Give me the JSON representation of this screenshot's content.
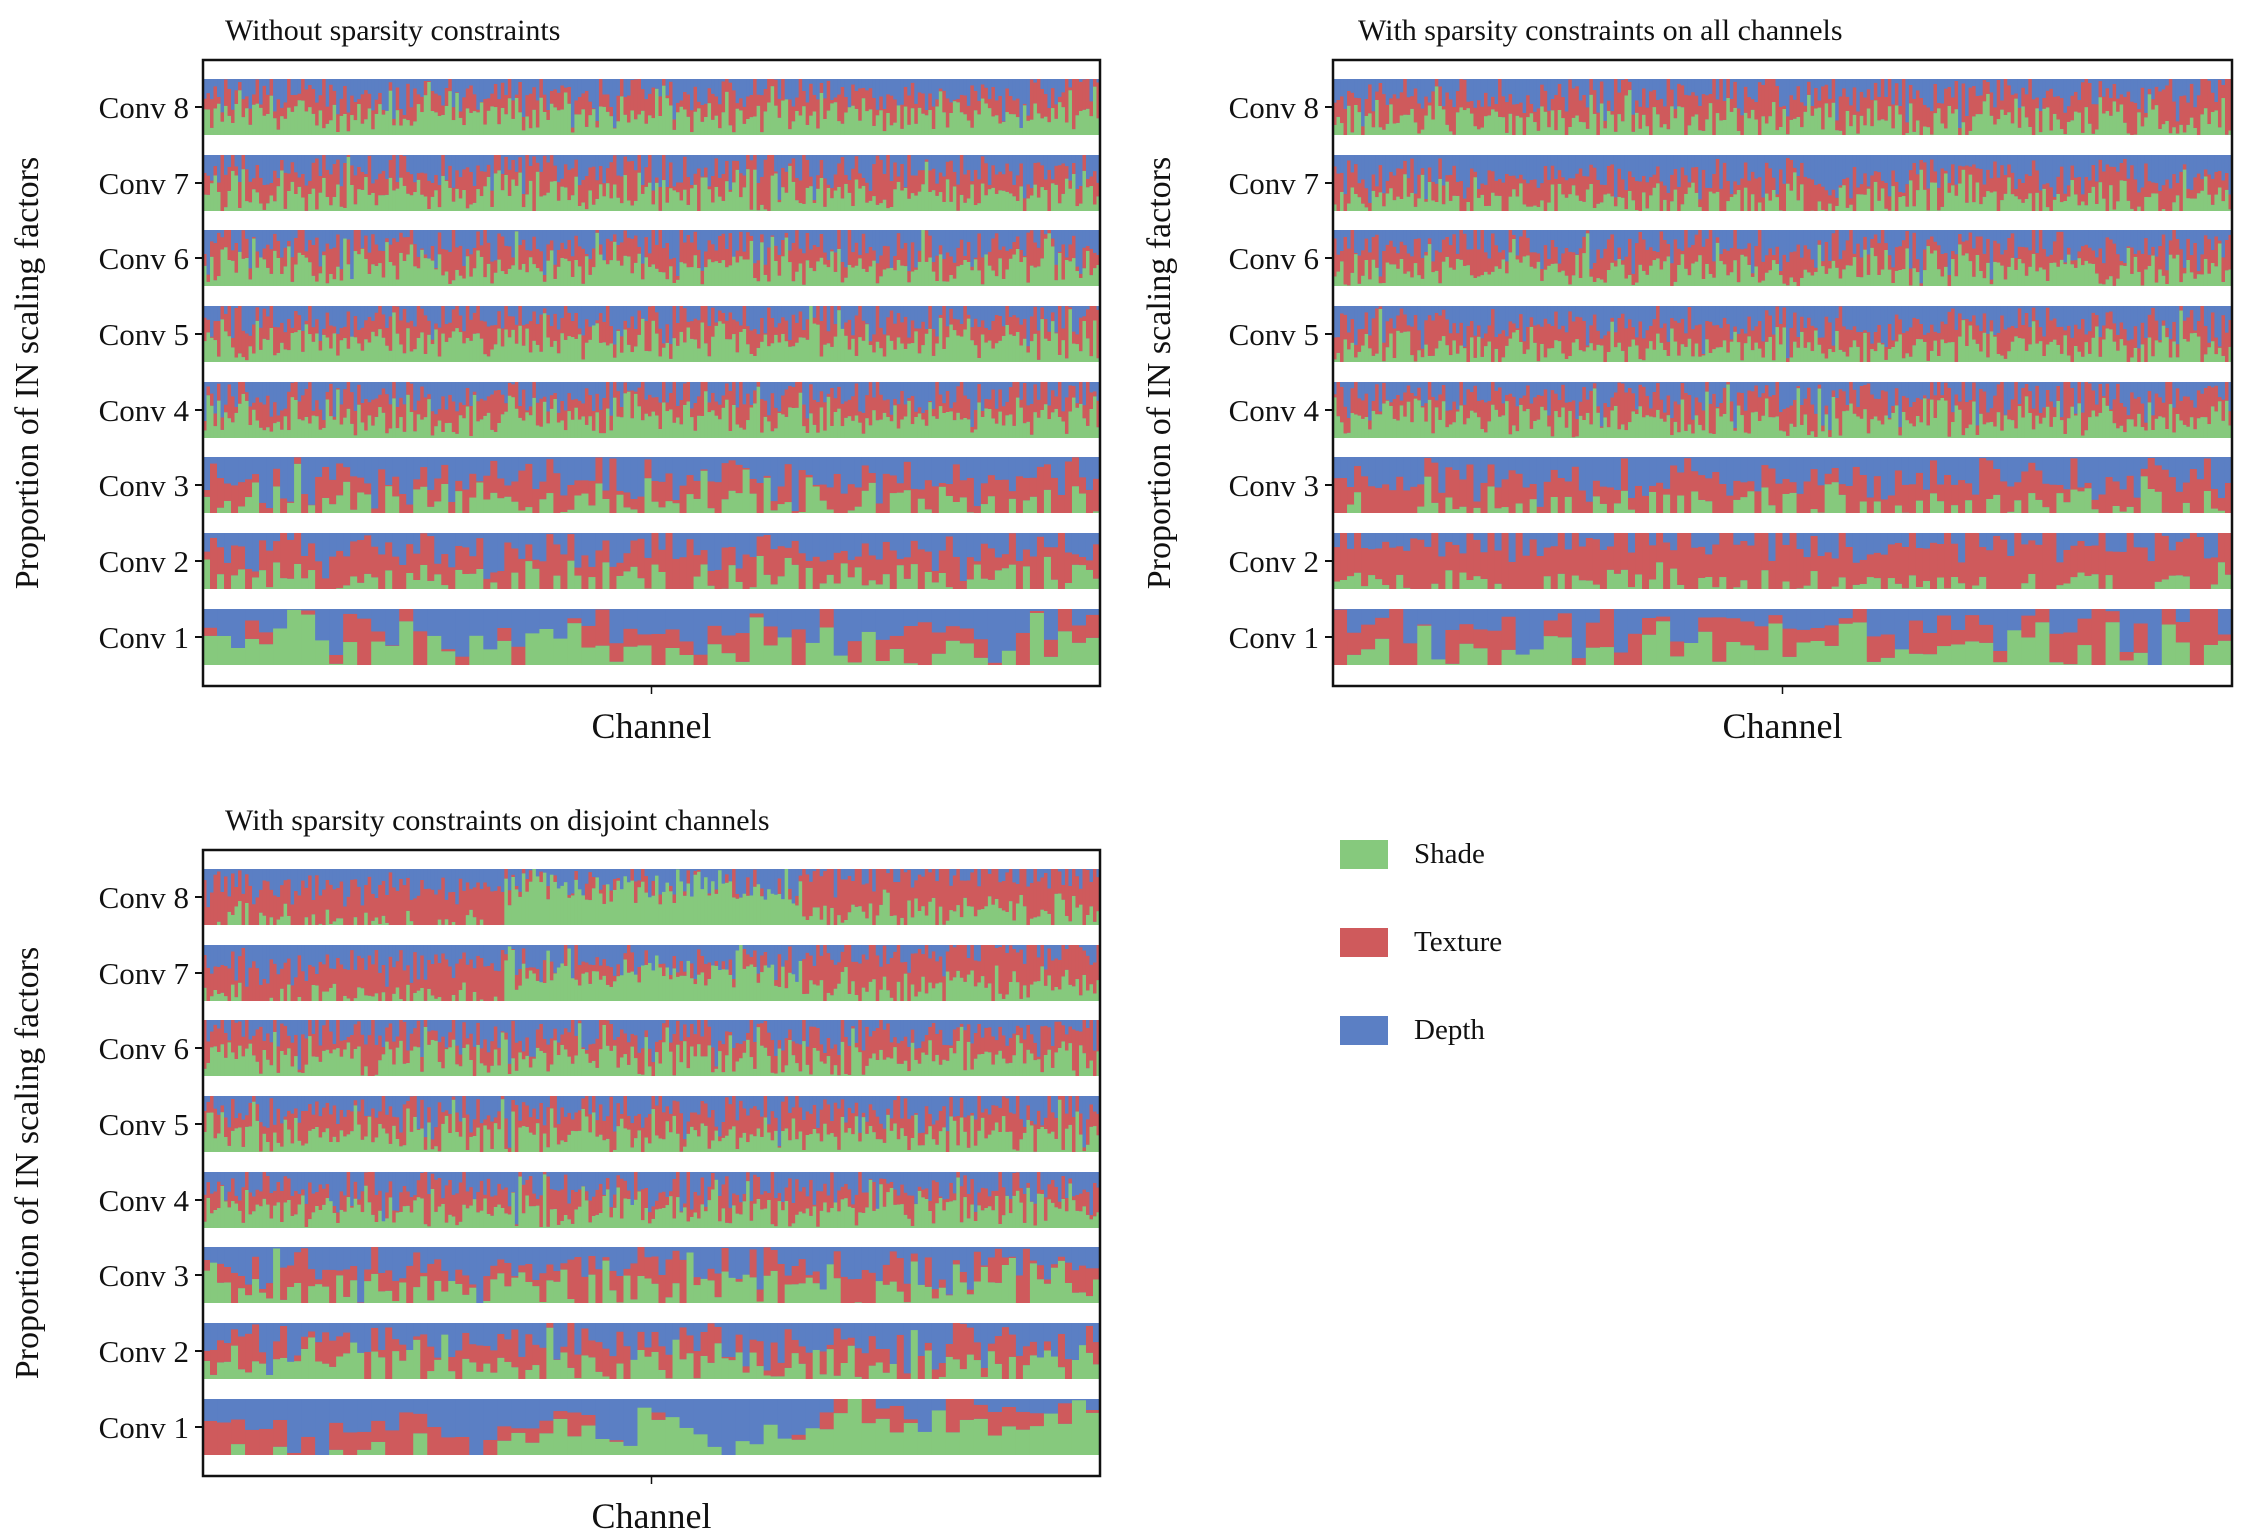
{
  "colors": {
    "shade": "#86c97d",
    "texture": "#cf5a5c",
    "depth": "#5b7fc4"
  },
  "legend": [
    {
      "key": "shade",
      "label": "Shade",
      "color": "#86c97d"
    },
    {
      "key": "texture",
      "label": "Texture",
      "color": "#cf5a5c"
    },
    {
      "key": "depth",
      "label": "Depth",
      "color": "#5b7fc4"
    }
  ],
  "chart_data": [
    {
      "type": "bar",
      "stacked": true,
      "title": "Without sparsity constraints",
      "xlabel": "Channel",
      "ylabel": "Proportion of IN scaling factors",
      "ylim": [
        0,
        1
      ],
      "categories": [
        "Conv 8",
        "Conv 7",
        "Conv 6",
        "Conv 5",
        "Conv 4",
        "Conv 3",
        "Conv 2",
        "Conv 1"
      ],
      "layers": [
        {
          "name": "Conv 8",
          "channels": 256,
          "mean": {
            "shade": 0.38,
            "texture": 0.34,
            "depth": 0.28
          }
        },
        {
          "name": "Conv 7",
          "channels": 256,
          "mean": {
            "shade": 0.34,
            "texture": 0.36,
            "depth": 0.3
          }
        },
        {
          "name": "Conv 6",
          "channels": 256,
          "mean": {
            "shade": 0.36,
            "texture": 0.34,
            "depth": 0.3
          }
        },
        {
          "name": "Conv 5",
          "channels": 256,
          "mean": {
            "shade": 0.38,
            "texture": 0.34,
            "depth": 0.28
          }
        },
        {
          "name": "Conv 4",
          "channels": 256,
          "mean": {
            "shade": 0.38,
            "texture": 0.36,
            "depth": 0.26
          }
        },
        {
          "name": "Conv 3",
          "channels": 128,
          "mean": {
            "shade": 0.2,
            "texture": 0.4,
            "depth": 0.4
          }
        },
        {
          "name": "Conv 2",
          "channels": 128,
          "mean": {
            "shade": 0.18,
            "texture": 0.47,
            "depth": 0.35
          }
        },
        {
          "name": "Conv 1",
          "channels": 64,
          "mean": {
            "shade": 0.38,
            "texture": 0.22,
            "depth": 0.4
          }
        }
      ]
    },
    {
      "type": "bar",
      "stacked": true,
      "title": "With sparsity constraints on all channels",
      "xlabel": "Channel",
      "ylabel": "Proportion of IN scaling factors",
      "ylim": [
        0,
        1
      ],
      "categories": [
        "Conv 8",
        "Conv 7",
        "Conv 6",
        "Conv 5",
        "Conv 4",
        "Conv 3",
        "Conv 2",
        "Conv 1"
      ],
      "layers": [
        {
          "name": "Conv 8",
          "channels": 256,
          "mean": {
            "shade": 0.32,
            "texture": 0.4,
            "depth": 0.28
          }
        },
        {
          "name": "Conv 7",
          "channels": 256,
          "mean": {
            "shade": 0.22,
            "texture": 0.38,
            "depth": 0.4
          }
        },
        {
          "name": "Conv 6",
          "channels": 256,
          "mean": {
            "shade": 0.34,
            "texture": 0.36,
            "depth": 0.3
          }
        },
        {
          "name": "Conv 5",
          "channels": 256,
          "mean": {
            "shade": 0.3,
            "texture": 0.36,
            "depth": 0.34
          }
        },
        {
          "name": "Conv 4",
          "channels": 256,
          "mean": {
            "shade": 0.36,
            "texture": 0.36,
            "depth": 0.28
          }
        },
        {
          "name": "Conv 3",
          "channels": 128,
          "mean": {
            "shade": 0.14,
            "texture": 0.46,
            "depth": 0.4
          }
        },
        {
          "name": "Conv 2",
          "channels": 128,
          "mean": {
            "shade": 0.06,
            "texture": 0.76,
            "depth": 0.18
          }
        },
        {
          "name": "Conv 1",
          "channels": 64,
          "mean": {
            "shade": 0.36,
            "texture": 0.34,
            "depth": 0.3
          }
        }
      ]
    },
    {
      "type": "bar",
      "stacked": true,
      "title": "With sparsity constraints on disjoint channels",
      "xlabel": "Channel",
      "ylabel": "Proportion of IN scaling factors",
      "ylim": [
        0,
        1
      ],
      "categories": [
        "Conv 8",
        "Conv 7",
        "Conv 6",
        "Conv 5",
        "Conv 4",
        "Conv 3",
        "Conv 2",
        "Conv 1"
      ],
      "layers": [
        {
          "name": "Conv 8",
          "channels": 256,
          "segments": [
            {
              "fraction": 0.333,
              "mean": {
                "shade": 0.02,
                "texture": 0.62,
                "depth": 0.36
              }
            },
            {
              "fraction": 0.333,
              "mean": {
                "shade": 0.64,
                "texture": 0.06,
                "depth": 0.3
              }
            },
            {
              "fraction": 0.334,
              "mean": {
                "shade": 0.3,
                "texture": 0.66,
                "depth": 0.04
              }
            }
          ]
        },
        {
          "name": "Conv 7",
          "channels": 256,
          "segments": [
            {
              "fraction": 0.333,
              "mean": {
                "shade": 0.06,
                "texture": 0.56,
                "depth": 0.38
              }
            },
            {
              "fraction": 0.333,
              "mean": {
                "shade": 0.52,
                "texture": 0.16,
                "depth": 0.32
              }
            },
            {
              "fraction": 0.334,
              "mean": {
                "shade": 0.3,
                "texture": 0.58,
                "depth": 0.12
              }
            }
          ]
        },
        {
          "name": "Conv 6",
          "channels": 256,
          "mean": {
            "shade": 0.34,
            "texture": 0.36,
            "depth": 0.3
          }
        },
        {
          "name": "Conv 5",
          "channels": 256,
          "mean": {
            "shade": 0.34,
            "texture": 0.36,
            "depth": 0.3
          }
        },
        {
          "name": "Conv 4",
          "channels": 256,
          "mean": {
            "shade": 0.36,
            "texture": 0.34,
            "depth": 0.3
          }
        },
        {
          "name": "Conv 3",
          "channels": 128,
          "mean": {
            "shade": 0.26,
            "texture": 0.36,
            "depth": 0.38
          }
        },
        {
          "name": "Conv 2",
          "channels": 128,
          "mean": {
            "shade": 0.32,
            "texture": 0.3,
            "depth": 0.38
          }
        },
        {
          "name": "Conv 1",
          "channels": 64,
          "segments": [
            {
              "fraction": 0.333,
              "mean": {
                "shade": 0.02,
                "texture": 0.38,
                "depth": 0.6
              }
            },
            {
              "fraction": 0.333,
              "mean": {
                "shade": 0.44,
                "texture": 0.0,
                "depth": 0.56
              }
            },
            {
              "fraction": 0.334,
              "mean": {
                "shade": 0.74,
                "texture": 0.26,
                "depth": 0.0
              }
            }
          ]
        }
      ]
    }
  ]
}
